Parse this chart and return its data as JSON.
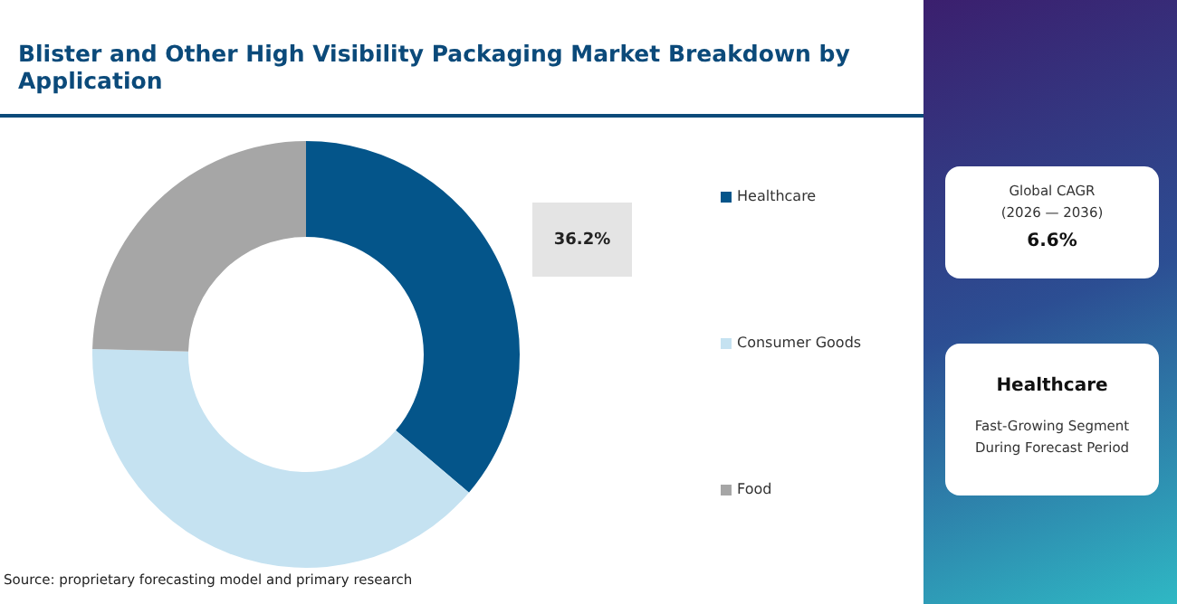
{
  "chart_data": {
    "type": "donut",
    "title": "Blister and Other High Visibility Packaging Market Breakdown by Application",
    "categories": [
      "Healthcare",
      "Consumer Goods",
      "Food"
    ],
    "values": [
      36.2,
      39.2,
      24.6
    ],
    "colors": [
      "#04558a",
      "#c5e2f1",
      "#a6a6a6"
    ],
    "value_labels": [
      "36.2%",
      null,
      null
    ],
    "legend": "right",
    "annotations": [
      "Source: proprietary forecasting model and primary research",
      "Global CAGR",
      "(2026 — 2036)",
      "6.6%",
      "Healthcare",
      "Fast-Growing Segment",
      "During Forecast Period"
    ]
  }
}
